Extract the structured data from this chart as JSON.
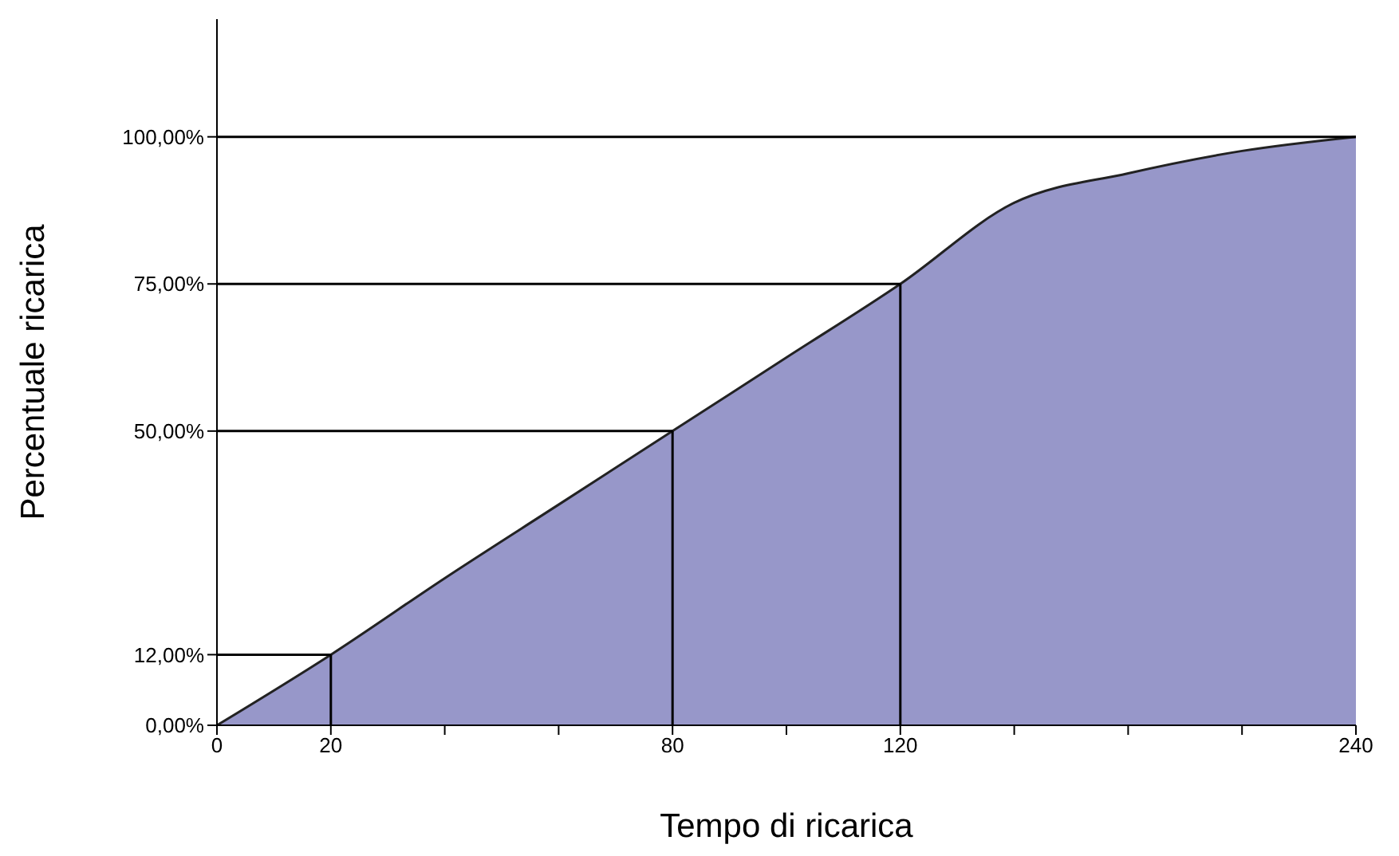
{
  "chart_data": {
    "type": "area",
    "xlabel": "Tempo di ricarica",
    "ylabel": "Percentuale ricarica",
    "categories": [
      "0",
      "20",
      null,
      null,
      "80",
      null,
      "120",
      null,
      null,
      null,
      "240"
    ],
    "values": [
      0,
      12,
      25,
      37.5,
      50,
      62.5,
      75,
      88.8,
      93.8,
      97.6,
      100
    ],
    "color": "#9797c9",
    "ylim": [
      0,
      120
    ],
    "yticks": [
      {
        "value": 0,
        "label": "0,00%"
      },
      {
        "value": 12,
        "label": "12,00%"
      },
      {
        "value": 50,
        "label": "50,00%"
      },
      {
        "value": 75,
        "label": "75,00%"
      },
      {
        "value": 100,
        "label": "100,00%"
      }
    ],
    "ref_lines": [
      {
        "axis": "y",
        "value": 12,
        "color": "#000000"
      },
      {
        "axis": "y",
        "value": 50,
        "color": "#000000"
      },
      {
        "axis": "y",
        "value": 75,
        "color": "#000000"
      },
      {
        "axis": "y",
        "value": 100,
        "color": "#000000"
      },
      {
        "axis": "x",
        "value": "20",
        "color": "#000000"
      },
      {
        "axis": "x",
        "value": "80",
        "color": "#000000"
      },
      {
        "axis": "x",
        "value": "120",
        "color": "#000000"
      }
    ],
    "grid": false,
    "legend": false
  }
}
